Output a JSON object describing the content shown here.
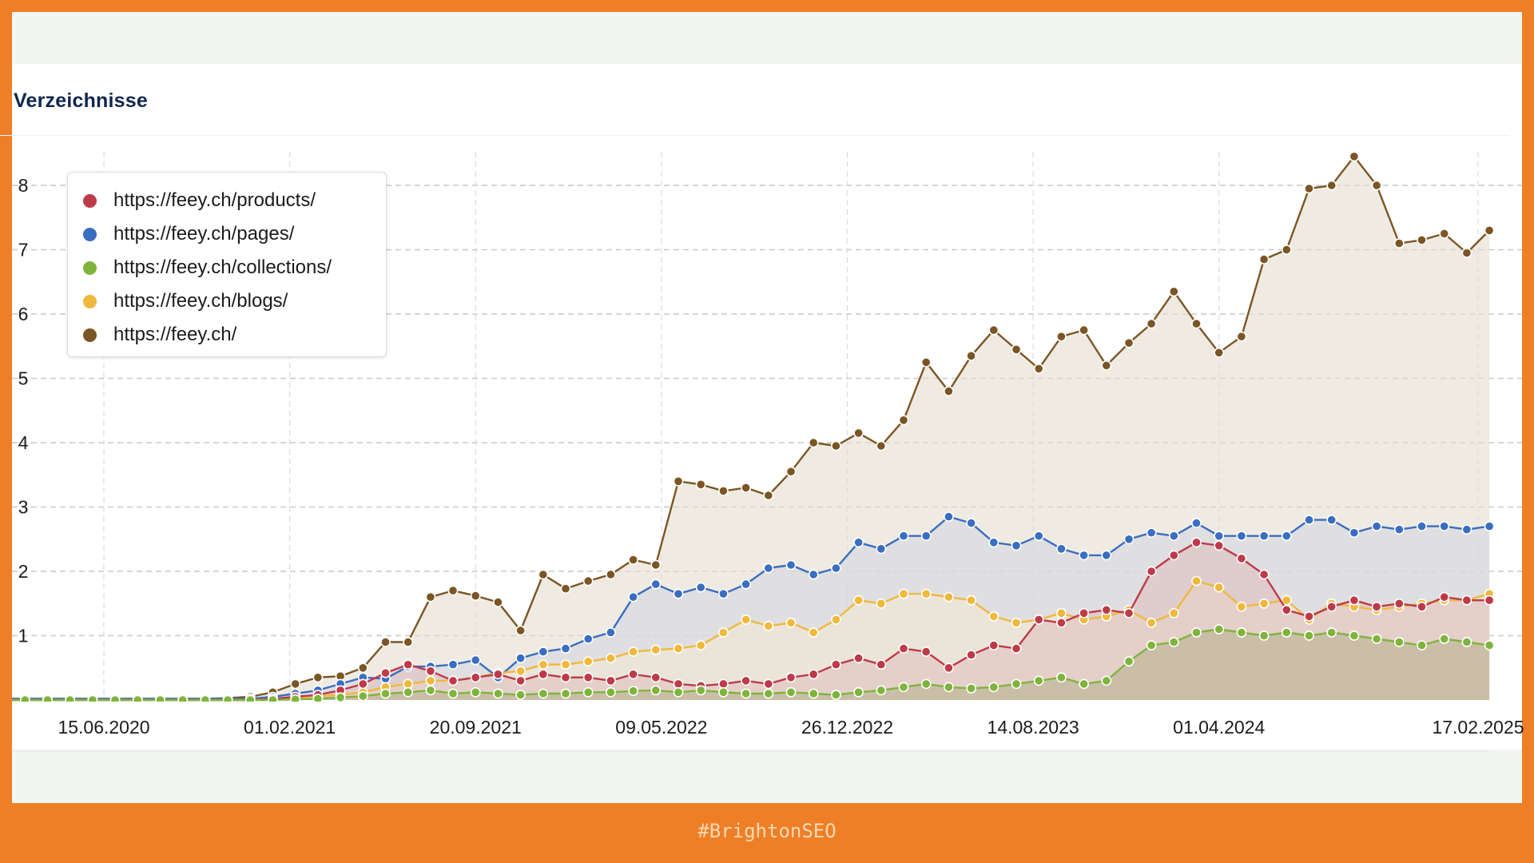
{
  "card": {
    "title": "Verzeichnisse"
  },
  "footer": {
    "hashtag": "#BrightonSEO"
  },
  "chart_data": {
    "type": "area",
    "title": "Verzeichnisse",
    "xlabel": "",
    "ylabel": "",
    "ylim": [
      0,
      8.6
    ],
    "y_ticks": [
      1,
      2,
      3,
      4,
      5,
      6,
      7,
      8
    ],
    "x_ticks": [
      "15.06.2020",
      "01.02.2021",
      "20.09.2021",
      "09.05.2022",
      "26.12.2022",
      "14.08.2023",
      "01.04.2024",
      "17.02.2025"
    ],
    "grid": true,
    "legend_position": "top-left",
    "x": [
      "2020-01-13",
      "2020-02-10",
      "2020-03-09",
      "2020-04-06",
      "2020-05-04",
      "2020-06-01",
      "2020-06-29",
      "2020-07-27",
      "2020-08-24",
      "2020-09-21",
      "2020-10-19",
      "2020-11-16",
      "2020-12-14",
      "2021-01-11",
      "2021-02-08",
      "2021-03-08",
      "2021-04-05",
      "2021-05-03",
      "2021-05-31",
      "2021-06-28",
      "2021-07-26",
      "2021-08-23",
      "2021-09-20",
      "2021-10-18",
      "2021-11-15",
      "2021-12-13",
      "2022-01-10",
      "2022-02-07",
      "2022-03-07",
      "2022-04-04",
      "2022-05-02",
      "2022-05-30",
      "2022-06-27",
      "2022-07-25",
      "2022-08-22",
      "2022-09-19",
      "2022-10-17",
      "2022-11-14",
      "2022-12-12",
      "2023-01-09",
      "2023-02-06",
      "2023-03-06",
      "2023-04-03",
      "2023-05-01",
      "2023-05-29",
      "2023-06-26",
      "2023-07-24",
      "2023-08-21",
      "2023-09-18",
      "2023-10-16",
      "2023-11-13",
      "2023-12-11",
      "2024-01-08",
      "2024-02-05",
      "2024-03-04",
      "2024-04-01",
      "2024-04-29",
      "2024-05-27",
      "2024-06-24",
      "2024-07-22",
      "2024-08-19",
      "2024-09-16",
      "2024-10-14",
      "2024-11-11",
      "2024-12-09",
      "2025-01-06",
      "2025-02-03",
      "2025-03-03"
    ],
    "series": [
      {
        "name": "https://feey.ch/",
        "color": "#7b5524",
        "fill": "#e6dece",
        "values": [
          0.02,
          0.02,
          0.02,
          0.02,
          0.02,
          0.02,
          0.02,
          0.02,
          0.02,
          0.02,
          0.02,
          0.03,
          0.05,
          0.12,
          0.25,
          0.35,
          0.37,
          0.5,
          0.9,
          0.9,
          1.6,
          1.7,
          1.62,
          1.52,
          1.08,
          1.95,
          1.73,
          1.85,
          1.95,
          2.18,
          2.1,
          3.4,
          3.35,
          3.25,
          3.3,
          3.18,
          3.55,
          4.0,
          3.95,
          4.15,
          3.95,
          4.35,
          5.25,
          4.8,
          5.35,
          5.75,
          5.45,
          5.15,
          5.65,
          5.75,
          5.2,
          5.55,
          5.85,
          6.35,
          5.85,
          5.4,
          5.65,
          6.85,
          7.0,
          7.95,
          8.0,
          8.45,
          8.0,
          7.1,
          7.15,
          7.25,
          6.95,
          7.3
        ]
      },
      {
        "name": "https://feey.ch/pages/",
        "color": "#3a6ec2",
        "fill": "#d3d5df",
        "values": [
          0.02,
          0.02,
          0.02,
          0.02,
          0.02,
          0.02,
          0.02,
          0.02,
          0.02,
          0.02,
          0.02,
          0.02,
          0.02,
          0.05,
          0.1,
          0.15,
          0.25,
          0.35,
          0.33,
          0.52,
          0.52,
          0.55,
          0.62,
          0.35,
          0.65,
          0.75,
          0.8,
          0.95,
          1.05,
          1.6,
          1.8,
          1.65,
          1.75,
          1.65,
          1.8,
          2.05,
          2.1,
          1.95,
          2.05,
          2.45,
          2.35,
          2.55,
          2.55,
          2.85,
          2.75,
          2.45,
          2.4,
          2.55,
          2.35,
          2.25,
          2.25,
          2.5,
          2.6,
          2.55,
          2.75,
          2.55,
          2.55,
          2.55,
          2.55,
          2.8,
          2.8,
          2.6,
          2.7,
          2.65,
          2.7,
          2.7,
          2.65,
          2.7
        ]
      },
      {
        "name": "https://feey.ch/blogs/",
        "color": "#f0b83c",
        "fill": "#f1ead2",
        "values": [
          0.0,
          0.0,
          0.0,
          0.0,
          0.0,
          0.0,
          0.0,
          0.0,
          0.0,
          0.0,
          0.0,
          0.0,
          0.0,
          0.02,
          0.04,
          0.06,
          0.08,
          0.12,
          0.2,
          0.25,
          0.3,
          0.3,
          0.35,
          0.42,
          0.45,
          0.55,
          0.55,
          0.6,
          0.65,
          0.75,
          0.78,
          0.8,
          0.85,
          1.05,
          1.25,
          1.15,
          1.2,
          1.05,
          1.25,
          1.55,
          1.5,
          1.65,
          1.65,
          1.6,
          1.55,
          1.3,
          1.2,
          1.25,
          1.35,
          1.25,
          1.3,
          1.4,
          1.2,
          1.35,
          1.85,
          1.75,
          1.45,
          1.5,
          1.55,
          1.25,
          1.5,
          1.45,
          1.4,
          1.45,
          1.5,
          1.55,
          1.55,
          1.65
        ]
      },
      {
        "name": "https://feey.ch/products/",
        "color": "#bf3a49",
        "fill": "#dfc0bf",
        "values": [
          0.0,
          0.0,
          0.0,
          0.0,
          0.0,
          0.0,
          0.0,
          0.0,
          0.0,
          0.0,
          0.0,
          0.0,
          0.0,
          0.02,
          0.05,
          0.08,
          0.15,
          0.25,
          0.42,
          0.55,
          0.45,
          0.3,
          0.35,
          0.4,
          0.3,
          0.4,
          0.35,
          0.35,
          0.3,
          0.4,
          0.35,
          0.25,
          0.22,
          0.25,
          0.3,
          0.25,
          0.35,
          0.4,
          0.55,
          0.65,
          0.55,
          0.8,
          0.75,
          0.5,
          0.7,
          0.85,
          0.8,
          1.25,
          1.2,
          1.35,
          1.4,
          1.35,
          2.0,
          2.25,
          2.45,
          2.4,
          2.2,
          1.95,
          1.4,
          1.3,
          1.45,
          1.55,
          1.45,
          1.5,
          1.45,
          1.6,
          1.55,
          1.55
        ]
      },
      {
        "name": "https://feey.ch/collections/",
        "color": "#7fb43c",
        "fill": "#b9b391",
        "values": [
          0.0,
          0.0,
          0.0,
          0.0,
          0.0,
          0.0,
          0.0,
          0.0,
          0.0,
          0.0,
          0.0,
          0.0,
          0.0,
          0.0,
          0.01,
          0.02,
          0.04,
          0.06,
          0.1,
          0.12,
          0.15,
          0.1,
          0.12,
          0.1,
          0.08,
          0.1,
          0.1,
          0.12,
          0.12,
          0.14,
          0.15,
          0.12,
          0.15,
          0.12,
          0.1,
          0.1,
          0.12,
          0.1,
          0.08,
          0.12,
          0.15,
          0.2,
          0.25,
          0.2,
          0.18,
          0.2,
          0.25,
          0.3,
          0.35,
          0.25,
          0.3,
          0.6,
          0.85,
          0.9,
          1.05,
          1.1,
          1.05,
          1.0,
          1.05,
          1.0,
          1.05,
          1.0,
          0.95,
          0.9,
          0.85,
          0.95,
          0.9,
          0.85
        ]
      }
    ]
  }
}
